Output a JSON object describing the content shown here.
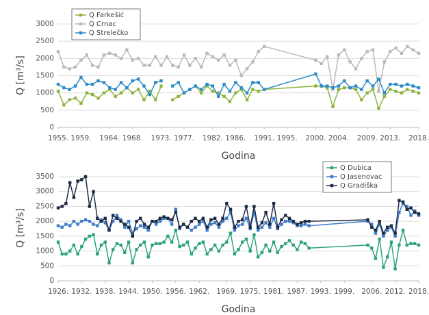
{
  "chart_data": [
    {
      "type": "line",
      "y_label": "Q [m³/s]",
      "x_label": "Godina",
      "legend": "upper left",
      "grid": true,
      "xlim": [
        1955,
        2018
      ],
      "ylim": [
        0,
        3000
      ],
      "yticks": [
        0,
        500,
        1000,
        1500,
        2000,
        2500,
        3000
      ],
      "xticks": [
        {
          "value": 1955,
          "label": "1955."
        },
        {
          "value": 1959,
          "label": "1959."
        },
        {
          "value": 1964,
          "label": "1964."
        },
        {
          "value": 1968,
          "label": "1968."
        },
        {
          "value": 1973,
          "label": "1973."
        },
        {
          "value": 1977,
          "label": "1977."
        },
        {
          "value": 1982,
          "label": "1982."
        },
        {
          "value": 1986,
          "label": "1986."
        },
        {
          "value": 1991,
          "label": "1991."
        },
        {
          "value": 1995,
          "label": "1995."
        },
        {
          "value": 2000,
          "label": "2000."
        },
        {
          "value": 2004,
          "label": "2004."
        },
        {
          "value": 2009,
          "label": "2009."
        },
        {
          "value": 2013,
          "label": "2013."
        },
        {
          "value": 2018,
          "label": "2018."
        }
      ],
      "x": [
        1955,
        1956,
        1957,
        1958,
        1959,
        1960,
        1961,
        1962,
        1963,
        1964,
        1965,
        1966,
        1967,
        1968,
        1969,
        1970,
        1971,
        1972,
        1973,
        1974,
        1975,
        1976,
        1977,
        1978,
        1979,
        1980,
        1981,
        1982,
        1983,
        1984,
        1985,
        1986,
        1987,
        1988,
        1989,
        1990,
        1991,
        2000,
        2001,
        2002,
        2003,
        2004,
        2005,
        2006,
        2007,
        2008,
        2009,
        2010,
        2011,
        2012,
        2013,
        2014,
        2015,
        2016,
        2017,
        2018
      ],
      "series": [
        {
          "name": "Q Farkešić",
          "color": "#8db43e",
          "values": [
            1050,
            650,
            800,
            850,
            700,
            1000,
            950,
            850,
            1000,
            1100,
            900,
            1000,
            1150,
            1000,
            1100,
            800,
            1050,
            800,
            1200,
            null,
            800,
            900,
            1000,
            1100,
            1200,
            1000,
            1200,
            1050,
            1000,
            900,
            750,
            1000,
            1100,
            800,
            1100,
            1050,
            1100,
            1200,
            1200,
            1150,
            600,
            1100,
            1150,
            1150,
            1100,
            800,
            1000,
            1100,
            550,
            900,
            1100,
            1050,
            1000,
            1100,
            1050,
            1000
          ]
        },
        {
          "name": "Q Crnac",
          "color": "#b9b9b9",
          "values": [
            2200,
            1750,
            1700,
            1750,
            1950,
            2100,
            1800,
            1750,
            2100,
            2150,
            2100,
            2000,
            2250,
            1950,
            2000,
            1800,
            1800,
            2050,
            1800,
            2050,
            1800,
            1750,
            2100,
            1800,
            2000,
            1750,
            2150,
            2050,
            1950,
            2100,
            1800,
            1950,
            1500,
            1700,
            1900,
            2200,
            2350,
            1950,
            1850,
            2050,
            1100,
            2100,
            2250,
            1900,
            1700,
            2000,
            2200,
            2250,
            1050,
            1900,
            2200,
            2300,
            2150,
            2350,
            2250,
            2150
          ]
        },
        {
          "name": "Q Strelečko",
          "color": "#2a8bc8",
          "values": [
            1250,
            1150,
            1100,
            1200,
            1450,
            1250,
            1250,
            1350,
            1300,
            1150,
            1100,
            1300,
            1150,
            1350,
            1400,
            1200,
            950,
            1300,
            1350,
            null,
            1200,
            1300,
            1000,
            1100,
            1200,
            1100,
            1250,
            1200,
            900,
            1250,
            1050,
            1300,
            1150,
            1000,
            1300,
            1300,
            1100,
            1550,
            1200,
            1200,
            1150,
            1200,
            1350,
            1150,
            1200,
            1100,
            1350,
            1200,
            1400,
            1000,
            1250,
            1250,
            1200,
            1250,
            1200,
            1150
          ]
        }
      ]
    },
    {
      "type": "line",
      "y_label": "Q [m³/s]",
      "x_label": "Godina",
      "legend": "upper right",
      "grid": true,
      "xlim": [
        1926,
        2018
      ],
      "ylim": [
        0,
        3500
      ],
      "yticks": [
        0,
        500,
        1000,
        1500,
        2000,
        2500,
        3000,
        3500
      ],
      "xticks": [
        {
          "value": 1926,
          "label": "1926."
        },
        {
          "value": 1932,
          "label": "1932."
        },
        {
          "value": 1938,
          "label": "1938."
        },
        {
          "value": 1944,
          "label": "1944."
        },
        {
          "value": 1950,
          "label": "1950."
        },
        {
          "value": 1956,
          "label": "1956."
        },
        {
          "value": 1962,
          "label": "1962."
        },
        {
          "value": 1969,
          "label": "1969."
        },
        {
          "value": 1975,
          "label": "1975."
        },
        {
          "value": 1981,
          "label": "1981."
        },
        {
          "value": 1987,
          "label": "1987."
        },
        {
          "value": 1993,
          "label": "1993."
        },
        {
          "value": 1999,
          "label": "1999."
        },
        {
          "value": 2006,
          "label": "2006."
        },
        {
          "value": 2012,
          "label": "2012."
        },
        {
          "value": 2018,
          "label": "2018."
        }
      ],
      "x": [
        1926,
        1927,
        1928,
        1929,
        1930,
        1931,
        1932,
        1933,
        1934,
        1935,
        1936,
        1937,
        1938,
        1939,
        1940,
        1941,
        1942,
        1943,
        1944,
        1945,
        1946,
        1947,
        1948,
        1949,
        1950,
        1951,
        1952,
        1953,
        1954,
        1955,
        1956,
        1957,
        1958,
        1959,
        1960,
        1961,
        1962,
        1963,
        1964,
        1965,
        1966,
        1967,
        1968,
        1969,
        1970,
        1971,
        1972,
        1973,
        1974,
        1975,
        1976,
        1977,
        1978,
        1979,
        1980,
        1981,
        1982,
        1983,
        1984,
        1985,
        1986,
        1987,
        1988,
        1989,
        1990,
        2005,
        2006,
        2007,
        2008,
        2009,
        2010,
        2011,
        2012,
        2013,
        2014,
        2015,
        2016,
        2017,
        2018
      ],
      "series": [
        {
          "name": "Q Dubica",
          "color": "#2ea37a",
          "values": [
            1300,
            900,
            900,
            1000,
            1200,
            900,
            1150,
            1400,
            1500,
            1550,
            900,
            1200,
            1300,
            600,
            1050,
            1250,
            1200,
            950,
            1300,
            600,
            1050,
            1200,
            1300,
            800,
            1200,
            1250,
            1250,
            1300,
            1500,
            1300,
            1700,
            1150,
            1200,
            1300,
            900,
            1100,
            1250,
            1300,
            900,
            1050,
            1200,
            1000,
            1200,
            1300,
            1600,
            900,
            1050,
            1300,
            1400,
            1000,
            1550,
            800,
            950,
            1200,
            1000,
            1300,
            950,
            1150,
            1250,
            1350,
            1200,
            1050,
            1300,
            1250,
            1100,
            1200,
            1100,
            750,
            1400,
            450,
            800,
            1300,
            400,
            1200,
            1700,
            1200,
            1250,
            1250,
            1200
          ]
        },
        {
          "name": "Q Jasenovac",
          "color": "#3d7cc9",
          "values": [
            1850,
            1800,
            1900,
            1850,
            2000,
            1900,
            2000,
            2050,
            2000,
            1900,
            1850,
            2050,
            1950,
            1700,
            2000,
            2200,
            2050,
            1800,
            2000,
            1600,
            1750,
            1850,
            1800,
            1700,
            2000,
            1900,
            2000,
            2100,
            2100,
            1900,
            2400,
            1750,
            1900,
            1800,
            1700,
            1800,
            1900,
            2000,
            1700,
            1900,
            1950,
            1800,
            2000,
            2100,
            2300,
            1700,
            1850,
            1900,
            2100,
            1750,
            2300,
            1700,
            1800,
            1950,
            1800,
            2100,
            1750,
            1900,
            2000,
            2000,
            1950,
            1850,
            1850,
            1900,
            1850,
            2000,
            1900,
            1600,
            1900,
            1500,
            1700,
            1800,
            1500,
            2300,
            2600,
            2500,
            2200,
            2350,
            2200
          ]
        },
        {
          "name": "Q Gradiška",
          "color": "#1e2a44",
          "values": [
            2450,
            2500,
            2600,
            3300,
            2800,
            3350,
            3400,
            3500,
            2500,
            3000,
            2100,
            2000,
            2100,
            1700,
            2200,
            2100,
            2000,
            1900,
            1800,
            1500,
            2000,
            2100,
            1900,
            1800,
            2000,
            2000,
            2100,
            2150,
            2100,
            2050,
            2300,
            1800,
            1900,
            1800,
            2000,
            2100,
            2000,
            2100,
            1800,
            2050,
            2100,
            1900,
            2100,
            2600,
            2400,
            1800,
            2000,
            2050,
            2500,
            1800,
            2500,
            1800,
            1950,
            2300,
            1900,
            2600,
            1800,
            2050,
            2200,
            2100,
            2000,
            1900,
            1950,
            2000,
            2000,
            2050,
            1800,
            1700,
            2000,
            1600,
            1800,
            1850,
            1600,
            2700,
            2650,
            2400,
            2450,
            2300,
            2250
          ]
        }
      ]
    }
  ]
}
